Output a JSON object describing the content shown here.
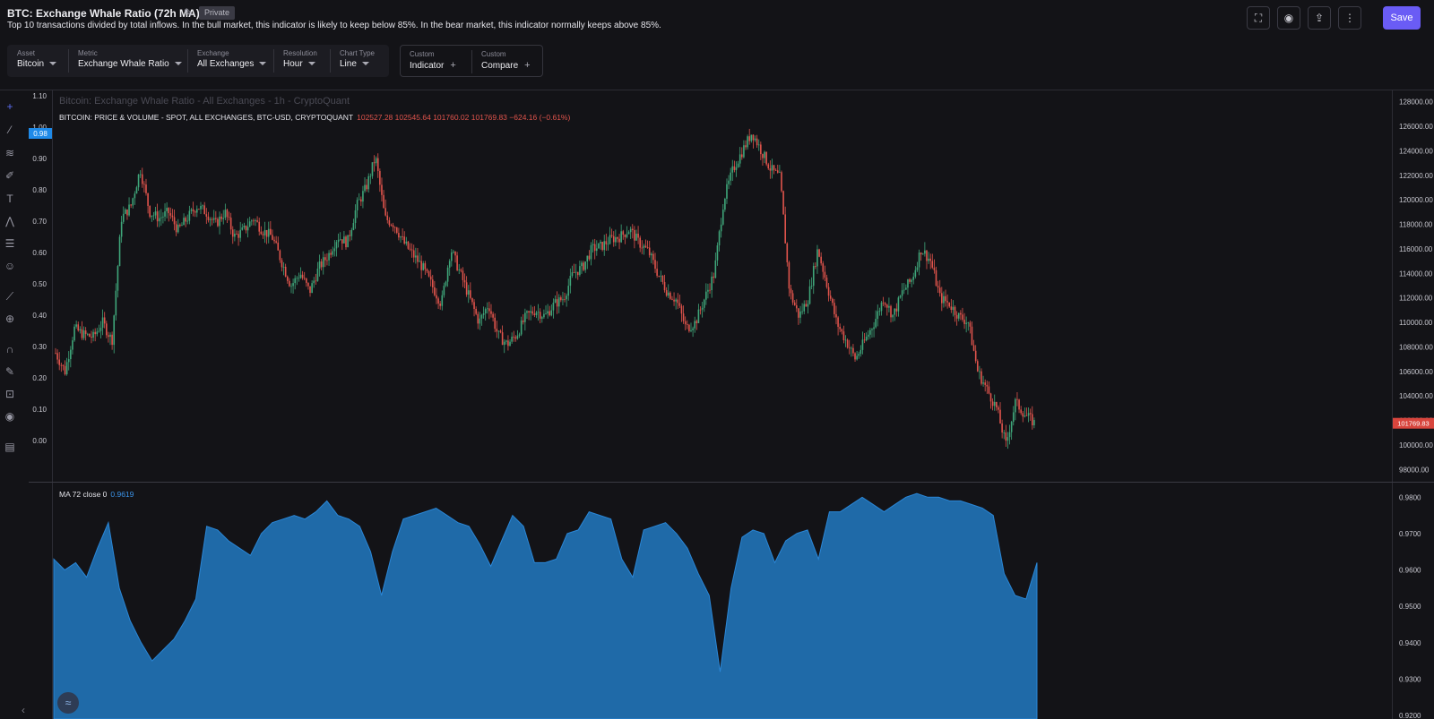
{
  "header": {
    "title": "BTC: Exchange Whale Ratio (72h MA)",
    "badge": "Private",
    "description": "Top 10 transactions divided by total inflows. In the bull market, this indicator is likely to keep below 85%. In the bear market, this indicator normally keeps above 85%.",
    "save_label": "Save",
    "icons": [
      "fullscreen-icon",
      "camera-icon",
      "share-icon",
      "more-icon"
    ]
  },
  "controls": [
    {
      "label": "Asset",
      "value": "Bitcoin"
    },
    {
      "label": "Metric",
      "value": "Exchange Whale Ratio"
    },
    {
      "label": "Exchange",
      "value": "All Exchanges"
    },
    {
      "label": "Resolution",
      "value": "Hour"
    },
    {
      "label": "Chart Type",
      "value": "Line"
    }
  ],
  "custom": [
    {
      "label": "Custom",
      "value": "Indicator"
    },
    {
      "label": "Custom",
      "value": "Compare"
    }
  ],
  "tools": [
    "crosshair-icon",
    "trendline-icon",
    "fib-icon",
    "brush-icon",
    "text-icon",
    "pattern-icon",
    "measure-icon",
    "emoji-icon",
    "ruler-icon",
    "zoom-icon",
    "magnet-icon",
    "lock-draw-icon",
    "lock-icon",
    "eye-icon",
    "trash-icon"
  ],
  "main_chart": {
    "legend_title": "Bitcoin: Exchange Whale Ratio - All Exchanges - 1h - CryptoQuant",
    "price_legend": "BITCOIN: PRICE & VOLUME - SPOT, ALL EXCHANGES, BTC-USD, CRYPTOQUANT",
    "ohlc": "102527.28  102545.64  101760.02  101769.83  −624.16 (−0.61%)",
    "left_ticks": [
      "1.10",
      "1.00",
      "0.90",
      "0.80",
      "0.70",
      "0.60",
      "0.50",
      "0.40",
      "0.30",
      "0.20",
      "0.10",
      "0.00"
    ],
    "left_marker": "0.98",
    "right_ticks": [
      "128000.00",
      "126000.00",
      "124000.00",
      "122000.00",
      "120000.00",
      "118000.00",
      "116000.00",
      "114000.00",
      "112000.00",
      "110000.00",
      "108000.00",
      "106000.00",
      "104000.00",
      "102000.00",
      "100000.00",
      "98000.00"
    ],
    "price_marker": "101769.83",
    "colors": {
      "up": "#3fa67a",
      "down": "#e0544c",
      "marker": "#1f8ae8"
    }
  },
  "sub_chart": {
    "legend_name": "MA 72 close 0",
    "legend_value": "0.9619",
    "right_ticks": [
      "0.9800",
      "0.9700",
      "0.9600",
      "0.9500",
      "0.9400",
      "0.9300",
      "0.9200"
    ],
    "fill_color": "#1f6aa8"
  },
  "chart_data": [
    {
      "type": "candlestick",
      "series_name": "BITCOIN: PRICE & VOLUME - SPOT, ALL EXCHANGES, BTC-USD, CRYPTOQUANT",
      "ylim": [
        97000,
        129000
      ],
      "close_path": [
        107500,
        106000,
        109500,
        109000,
        108800,
        110000,
        108500,
        118500,
        119500,
        122500,
        119000,
        118500,
        119000,
        117500,
        118500,
        119500,
        119000,
        118000,
        119000,
        117000,
        117500,
        118500,
        117500,
        117000,
        115000,
        113000,
        114000,
        112500,
        114500,
        115500,
        117000,
        116500,
        119500,
        121000,
        123500,
        118500,
        118000,
        116500,
        115500,
        114500,
        113000,
        111500,
        116000,
        114000,
        112000,
        110000,
        111500,
        109000,
        108200,
        109000,
        110500,
        111000,
        110500,
        111500,
        112000,
        114000,
        114500,
        116000,
        116200,
        116800,
        117000,
        117600,
        116500,
        115800,
        114000,
        112500,
        111800,
        109500,
        110000,
        112000,
        114000,
        120000,
        122500,
        124000,
        125500,
        124000,
        122500,
        121800,
        112500,
        110500,
        112000,
        116000,
        113000,
        110000,
        108500,
        107000,
        108500,
        110000,
        112000,
        110500,
        112500,
        113500,
        116000,
        115000,
        112000,
        111500,
        110500,
        110000,
        106000,
        104500,
        103000,
        100000,
        103500,
        102500,
        101800
      ]
    },
    {
      "type": "area",
      "series_name": "MA 72 close 0",
      "ylim": [
        0.92,
        0.985
      ],
      "values": [
        0.963,
        0.96,
        0.962,
        0.958,
        0.966,
        0.973,
        0.955,
        0.946,
        0.94,
        0.935,
        0.938,
        0.941,
        0.946,
        0.952,
        0.972,
        0.971,
        0.968,
        0.966,
        0.964,
        0.97,
        0.973,
        0.974,
        0.975,
        0.974,
        0.976,
        0.979,
        0.975,
        0.974,
        0.972,
        0.965,
        0.953,
        0.965,
        0.974,
        0.975,
        0.976,
        0.977,
        0.975,
        0.973,
        0.972,
        0.967,
        0.961,
        0.968,
        0.975,
        0.972,
        0.962,
        0.962,
        0.963,
        0.97,
        0.971,
        0.976,
        0.975,
        0.974,
        0.963,
        0.958,
        0.971,
        0.972,
        0.973,
        0.97,
        0.966,
        0.959,
        0.953,
        0.932,
        0.955,
        0.969,
        0.971,
        0.97,
        0.962,
        0.968,
        0.97,
        0.971,
        0.963,
        0.976,
        0.976,
        0.978,
        0.98,
        0.978,
        0.976,
        0.978,
        0.98,
        0.981,
        0.98,
        0.98,
        0.979,
        0.979,
        0.978,
        0.977,
        0.975,
        0.959,
        0.953,
        0.952,
        0.962
      ]
    }
  ]
}
